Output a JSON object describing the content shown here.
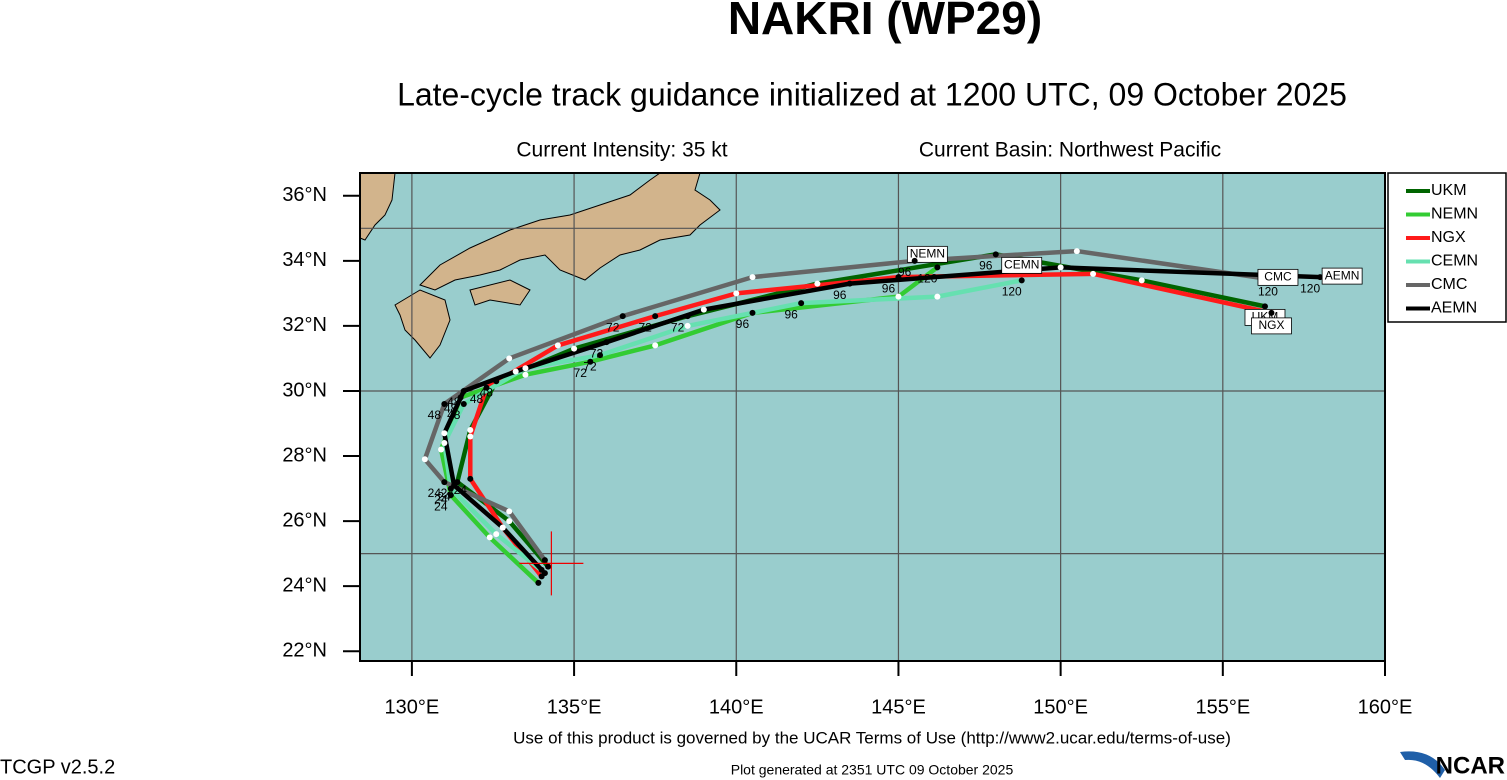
{
  "chart_data": {
    "type": "line",
    "title": "NAKRI (WP29)",
    "subtitle": "Late-cycle track guidance initialized at 1200 UTC, 09 October 2025",
    "intensity": "Current Intensity: 35 kt",
    "basin": "Current Basin: Northwest Pacific",
    "terms": "Use of this product is governed by the UCAR Terms of Use (http://www2.ucar.edu/terms-of-use)",
    "version": "TCGP v2.5.2",
    "generated": "Plot generated at 2351 UTC   09 October 2025",
    "logo": "NCAR",
    "xlim": [
      128.4,
      160
    ],
    "ylim": [
      21.7,
      36.7
    ],
    "xticks": [
      {
        "value": 130,
        "label": "130°E"
      },
      {
        "value": 135,
        "label": "135°E"
      },
      {
        "value": 140,
        "label": "140°E"
      },
      {
        "value": 145,
        "label": "145°E"
      },
      {
        "value": 150,
        "label": "150°E"
      },
      {
        "value": 155,
        "label": "155°E"
      },
      {
        "value": 160,
        "label": "160°E"
      }
    ],
    "yticks": [
      {
        "value": 22,
        "label": "22°N"
      },
      {
        "value": 24,
        "label": "24°N"
      },
      {
        "value": 26,
        "label": "26°N"
      },
      {
        "value": 28,
        "label": "28°N"
      },
      {
        "value": 30,
        "label": "30°N"
      },
      {
        "value": 32,
        "label": "32°N"
      },
      {
        "value": 34,
        "label": "34°N"
      },
      {
        "value": 36,
        "label": "36°N"
      }
    ],
    "xgrid": [
      130,
      135,
      140,
      145,
      150,
      155
    ],
    "ygrid": [
      25,
      30,
      35
    ],
    "grid": true,
    "ocean_color": "#99cdcd",
    "land_color": "#d2b48c",
    "legend": "upper right",
    "current_position": {
      "x": 134.3,
      "y": 24.7
    },
    "series": [
      {
        "name": "UKM",
        "color": "#006400",
        "x": [
          134.2,
          133.0,
          131.4,
          131.8,
          132.6,
          135.0,
          138.5,
          142.5,
          148.0,
          152.5,
          156.3
        ],
        "values": [
          24.6,
          26.0,
          27.2,
          28.8,
          30.3,
          31.3,
          32.3,
          33.3,
          34.2,
          33.4,
          32.6
        ],
        "hour_labels": [
          null,
          null,
          "24",
          null,
          "48",
          null,
          "72",
          null,
          "96",
          null,
          "120"
        ]
      },
      {
        "name": "NEMN",
        "color": "#33cc33",
        "x": [
          133.9,
          132.4,
          131.2,
          130.9,
          131.5,
          133.5,
          135.5,
          137.5,
          140.5,
          145.0,
          146.2
        ],
        "values": [
          24.1,
          25.5,
          26.8,
          28.2,
          29.8,
          30.5,
          30.9,
          31.4,
          32.4,
          32.9,
          33.8
        ],
        "hour_labels": [
          null,
          null,
          "24",
          null,
          "48",
          null,
          "72",
          null,
          "96",
          null,
          "120"
        ]
      },
      {
        "name": "NGX",
        "color": "#ff1a1a",
        "x": [
          134.0,
          132.8,
          131.8,
          131.8,
          132.3,
          134.5,
          137.5,
          140.0,
          145.0,
          151.0,
          156.5
        ],
        "values": [
          24.3,
          25.8,
          27.3,
          28.6,
          30.1,
          31.4,
          32.3,
          33.0,
          33.5,
          33.6,
          32.4
        ],
        "hour_labels": [
          null,
          null,
          "24",
          null,
          "48",
          null,
          "72",
          null,
          "96",
          null,
          "120"
        ]
      },
      {
        "name": "CEMN",
        "color": "#66e0b0",
        "x": [
          134.1,
          132.6,
          131.2,
          131.0,
          131.6,
          133.5,
          135.8,
          138.5,
          142.0,
          146.2,
          148.8
        ],
        "values": [
          24.4,
          25.6,
          27.0,
          28.4,
          29.6,
          30.7,
          31.1,
          32.0,
          32.7,
          32.9,
          33.4
        ],
        "hour_labels": [
          null,
          null,
          "24",
          null,
          "48",
          null,
          "72",
          null,
          "96",
          null,
          "120"
        ]
      },
      {
        "name": "CMC",
        "color": "#666666",
        "x": [
          134.1,
          133.0,
          131.0,
          130.4,
          131.0,
          133.0,
          136.5,
          140.5,
          145.5,
          150.5,
          156.7
        ],
        "values": [
          24.8,
          26.3,
          27.2,
          27.9,
          29.6,
          31.0,
          32.3,
          33.5,
          34.0,
          34.3,
          33.4
        ],
        "hour_labels": [
          null,
          null,
          "24",
          null,
          "48",
          null,
          "72",
          null,
          "96",
          null,
          "120"
        ]
      },
      {
        "name": "AEMN",
        "color": "#000000",
        "x": [
          134.0,
          132.8,
          131.3,
          131.0,
          131.6,
          133.2,
          136.0,
          139.0,
          143.5,
          150.0,
          158.0
        ],
        "values": [
          24.5,
          25.8,
          27.1,
          28.7,
          30.0,
          30.6,
          31.5,
          32.5,
          33.3,
          33.8,
          33.5
        ],
        "hour_labels": [
          null,
          null,
          "24",
          null,
          "48",
          null,
          "72",
          null,
          "96",
          null,
          "120"
        ]
      }
    ]
  }
}
